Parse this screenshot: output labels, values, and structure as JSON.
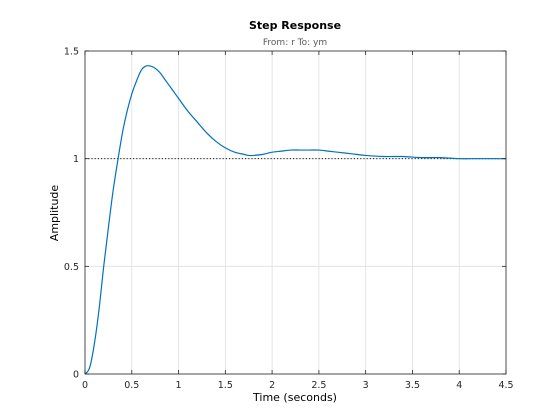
{
  "chart_data": {
    "type": "line",
    "title": "Step Response",
    "subtitle": "From: r  To: ym",
    "xlabel": "Time (seconds)",
    "ylabel": "Amplitude",
    "xlim": [
      0,
      4.5
    ],
    "ylim": [
      0,
      1.5
    ],
    "xticks": [
      "0",
      "0.5",
      "1",
      "1.5",
      "2",
      "2.5",
      "3",
      "3.5",
      "4",
      "4.5"
    ],
    "yticks": [
      "0",
      "0.5",
      "1",
      "1.5"
    ],
    "grid": true,
    "reference_line": 1,
    "line_color": "#0072bd",
    "series": [
      {
        "x": [
          0,
          0.05,
          0.1,
          0.15,
          0.2,
          0.25,
          0.3,
          0.35,
          0.4,
          0.45,
          0.5,
          0.55,
          0.6,
          0.65,
          0.7,
          0.75,
          0.8,
          0.85,
          0.9,
          0.95,
          1.0,
          1.1,
          1.2,
          1.3,
          1.4,
          1.5,
          1.6,
          1.7,
          1.75,
          1.8,
          1.9,
          2.0,
          2.1,
          2.2,
          2.3,
          2.4,
          2.5,
          2.6,
          2.7,
          2.8,
          2.9,
          3.0,
          3.2,
          3.4,
          3.6,
          3.8,
          4.0,
          4.2,
          4.4,
          4.5
        ],
        "y": [
          0,
          0.03,
          0.14,
          0.3,
          0.5,
          0.68,
          0.85,
          0.99,
          1.12,
          1.22,
          1.3,
          1.36,
          1.41,
          1.43,
          1.43,
          1.42,
          1.4,
          1.37,
          1.34,
          1.31,
          1.28,
          1.22,
          1.17,
          1.12,
          1.08,
          1.05,
          1.03,
          1.02,
          1.015,
          1.015,
          1.02,
          1.03,
          1.035,
          1.04,
          1.04,
          1.04,
          1.04,
          1.035,
          1.03,
          1.025,
          1.02,
          1.015,
          1.01,
          1.01,
          1.005,
          1.005,
          1.0,
          1.0,
          1.0,
          1.0
        ]
      }
    ]
  }
}
